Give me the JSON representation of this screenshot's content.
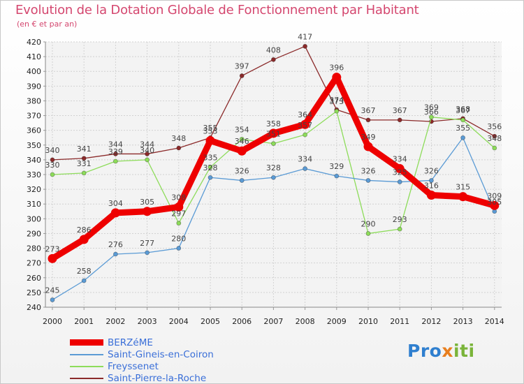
{
  "title": "Evolution de la Dotation Globale de Fonctionnement par Habitant",
  "subtitle": "(en € et par an)",
  "logo": {
    "part1": "Pro",
    "part2": "x",
    "part3": "iti"
  },
  "chart_data": {
    "type": "line",
    "title": "Evolution de la Dotation Globale de Fonctionnement par Habitant",
    "subtitle": "(en € et par an)",
    "xlabel": "",
    "ylabel": "",
    "ylim": [
      240,
      420
    ],
    "ytick_step": 10,
    "grid": true,
    "legend_position": "bottom-left",
    "x": [
      "2000",
      "2001",
      "2002",
      "2003",
      "2004",
      "2005",
      "2006",
      "2007",
      "2008",
      "2009",
      "2010",
      "2011",
      "2012",
      "2013",
      "2014"
    ],
    "series": [
      {
        "name": "Saint-Pierre-la-Roche",
        "color": "#8b2a2a",
        "labelColor": "#6b1f1f",
        "values": [
          340,
          341,
          344,
          344,
          348,
          355,
          397,
          408,
          417,
          374,
          367,
          367,
          366,
          368,
          356
        ]
      },
      {
        "name": "Freyssenet",
        "color": "#8ddc5a",
        "labelColor": "#5aa030",
        "values": [
          330,
          331,
          339,
          340,
          297,
          335,
          354,
          351,
          357,
          373,
          290,
          293,
          369,
          367,
          348
        ]
      },
      {
        "name": "Saint-Gineis-en-Coiron",
        "color": "#5b9bd5",
        "labelColor": "#2f6ea8",
        "values": [
          245,
          258,
          276,
          277,
          280,
          328,
          326,
          328,
          334,
          329,
          326,
          325,
          326,
          355,
          305
        ]
      },
      {
        "name": "BERZéME",
        "color": "#ee0000",
        "labelColor": "#cc0000",
        "values": [
          273,
          286,
          304,
          305,
          308,
          353,
          346,
          358,
          364,
          396,
          349,
          334,
          316,
          315,
          309
        ]
      }
    ]
  }
}
